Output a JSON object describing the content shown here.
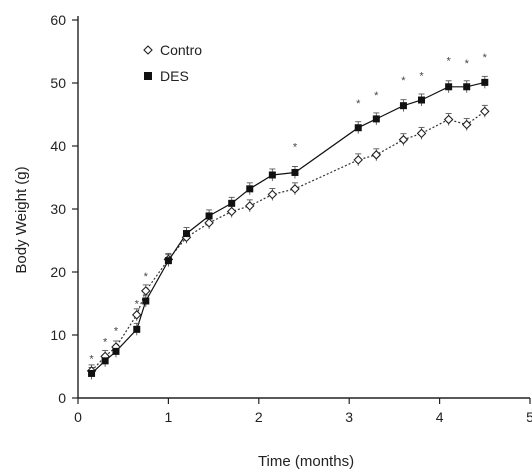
{
  "chart_data": {
    "type": "line",
    "title": "",
    "xlabel": "Time (months)",
    "ylabel": "Body Weight (g)",
    "xlim": [
      0,
      5
    ],
    "ylim": [
      0,
      60
    ],
    "xticks": [
      "0",
      "1",
      "2",
      "3",
      "4",
      "5"
    ],
    "yticks": [
      "0",
      "10",
      "20",
      "30",
      "40",
      "50",
      "60"
    ],
    "grid": false,
    "legend_position": "top-left",
    "series": [
      {
        "name": "Contro",
        "marker": "open-diamond",
        "line_style": "dotted",
        "color": "#333333",
        "x": [
          0.15,
          0.3,
          0.42,
          0.65,
          0.75,
          1.0,
          1.2,
          1.45,
          1.7,
          1.9,
          2.15,
          2.4,
          3.1,
          3.3,
          3.6,
          3.8,
          4.1,
          4.3,
          4.5
        ],
        "y": [
          4.3,
          6.6,
          8.1,
          13.2,
          17.0,
          22.0,
          25.5,
          27.8,
          29.6,
          30.5,
          32.3,
          33.2,
          37.8,
          38.6,
          41.0,
          42.0,
          44.2,
          43.4,
          45.5
        ]
      },
      {
        "name": "DES",
        "marker": "filled-square",
        "line_style": "solid",
        "color": "#111111",
        "x": [
          0.15,
          0.3,
          0.42,
          0.65,
          0.75,
          1.0,
          1.2,
          1.45,
          1.7,
          1.9,
          2.15,
          2.4,
          3.1,
          3.3,
          3.6,
          3.8,
          4.1,
          4.3,
          4.5
        ],
        "y": [
          3.9,
          5.9,
          7.4,
          10.9,
          15.4,
          21.8,
          26.1,
          28.9,
          30.9,
          33.2,
          35.4,
          35.8,
          42.9,
          44.3,
          46.4,
          47.3,
          49.4,
          49.4,
          50.1
        ]
      }
    ],
    "annotations": [
      "*"
    ],
    "asterisks": [
      {
        "x": 0.15,
        "y": 6.3
      },
      {
        "x": 0.3,
        "y": 9.0
      },
      {
        "x": 0.42,
        "y": 10.7
      },
      {
        "x": 0.65,
        "y": 15.0
      },
      {
        "x": 0.75,
        "y": 19.4
      },
      {
        "x": 2.4,
        "y": 39.9
      },
      {
        "x": 3.1,
        "y": 46.8
      },
      {
        "x": 3.3,
        "y": 48.1
      },
      {
        "x": 3.6,
        "y": 50.5
      },
      {
        "x": 3.8,
        "y": 51.2
      },
      {
        "x": 4.1,
        "y": 53.6
      },
      {
        "x": 4.3,
        "y": 53.2
      },
      {
        "x": 4.5,
        "y": 54.1
      }
    ]
  }
}
